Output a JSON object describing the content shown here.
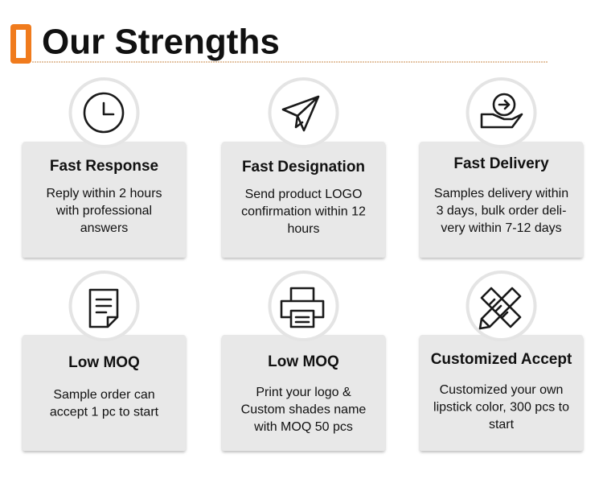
{
  "header": {
    "title": "Our Strengths"
  },
  "cards": [
    {
      "title": "Fast Response",
      "lines": [
        "Reply within 2 hours",
        "with professional",
        "answers"
      ]
    },
    {
      "title": "Fast Designation",
      "lines": [
        "Send product LOGO",
        "confirmation within 12",
        "hours"
      ]
    },
    {
      "title": "Fast Delivery",
      "lines": [
        "Samples delivery within",
        "3 days, bulk order deli-",
        "very within 7-12 days"
      ]
    },
    {
      "title": "Low MOQ",
      "lines": [
        "Sample order can",
        "accept 1 pc to start"
      ]
    },
    {
      "title": "Low MOQ",
      "lines": [
        "Print your logo &",
        "Custom shades name",
        "with MOQ 50 pcs"
      ]
    },
    {
      "title": "Customized Accept",
      "lines": [
        "Customized your own",
        "lipstick color, 300 pcs to",
        "start"
      ]
    }
  ]
}
